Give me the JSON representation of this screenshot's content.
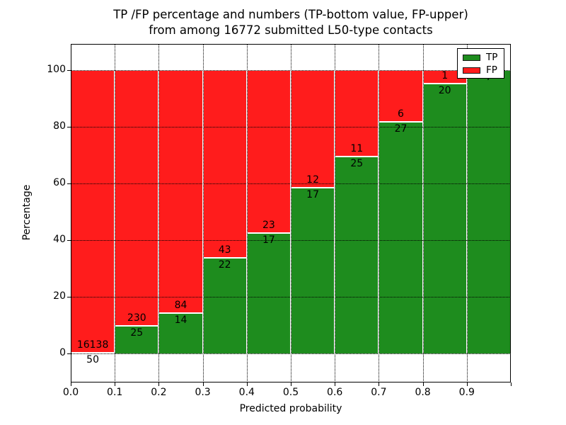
{
  "chart_data": {
    "type": "bar",
    "stacked": true,
    "title_line1": "TP /FP percentage and numbers (TP-bottom value, FP-upper)",
    "title_line2": "from among 16772 submitted L50-type contacts",
    "xlabel": "Predicted probability",
    "ylabel": "Percentage",
    "x_tick_labels": [
      "0.0",
      "0.1",
      "0.2",
      "0.3",
      "0.4",
      "0.5",
      "0.6",
      "0.7",
      "0.8",
      "0.9"
    ],
    "y_tick_values": [
      0,
      20,
      40,
      60,
      80,
      100
    ],
    "xlim": [
      0.0,
      1.0
    ],
    "ylim": [
      -10.25,
      109.25
    ],
    "grid": "dotted both axes",
    "legend_position": "upper right",
    "colors": {
      "tp": "#1e8c1e",
      "fp": "#ff1c1c"
    },
    "series": [
      {
        "name": "TP",
        "color": "#1e8c1e",
        "position": "bottom"
      },
      {
        "name": "FP",
        "color": "#ff1c1c",
        "position": "top"
      }
    ],
    "bins": [
      {
        "x_start": 0.0,
        "x_end": 0.1,
        "tp": 50,
        "fp": 16138,
        "tp_pct": 0.3
      },
      {
        "x_start": 0.1,
        "x_end": 0.2,
        "tp": 25,
        "fp": 230,
        "tp_pct": 9.8
      },
      {
        "x_start": 0.2,
        "x_end": 0.3,
        "tp": 14,
        "fp": 84,
        "tp_pct": 14.3
      },
      {
        "x_start": 0.3,
        "x_end": 0.4,
        "tp": 22,
        "fp": 43,
        "tp_pct": 33.8
      },
      {
        "x_start": 0.4,
        "x_end": 0.5,
        "tp": 17,
        "fp": 23,
        "tp_pct": 42.5
      },
      {
        "x_start": 0.5,
        "x_end": 0.6,
        "tp": 17,
        "fp": 12,
        "tp_pct": 58.6
      },
      {
        "x_start": 0.6,
        "x_end": 0.7,
        "tp": 25,
        "fp": 11,
        "tp_pct": 69.4
      },
      {
        "x_start": 0.7,
        "x_end": 0.8,
        "tp": 27,
        "fp": 6,
        "tp_pct": 81.8
      },
      {
        "x_start": 0.8,
        "x_end": 0.9,
        "tp": 20,
        "fp": 1,
        "tp_pct": 95.2
      },
      {
        "x_start": 0.9,
        "x_end": 1.0,
        "tp": 7,
        "fp": 0,
        "tp_pct": 100.0
      }
    ]
  },
  "legend": {
    "items": [
      {
        "label": "TP",
        "color": "#1e8c1e"
      },
      {
        "label": "FP",
        "color": "#ff1c1c"
      }
    ]
  }
}
